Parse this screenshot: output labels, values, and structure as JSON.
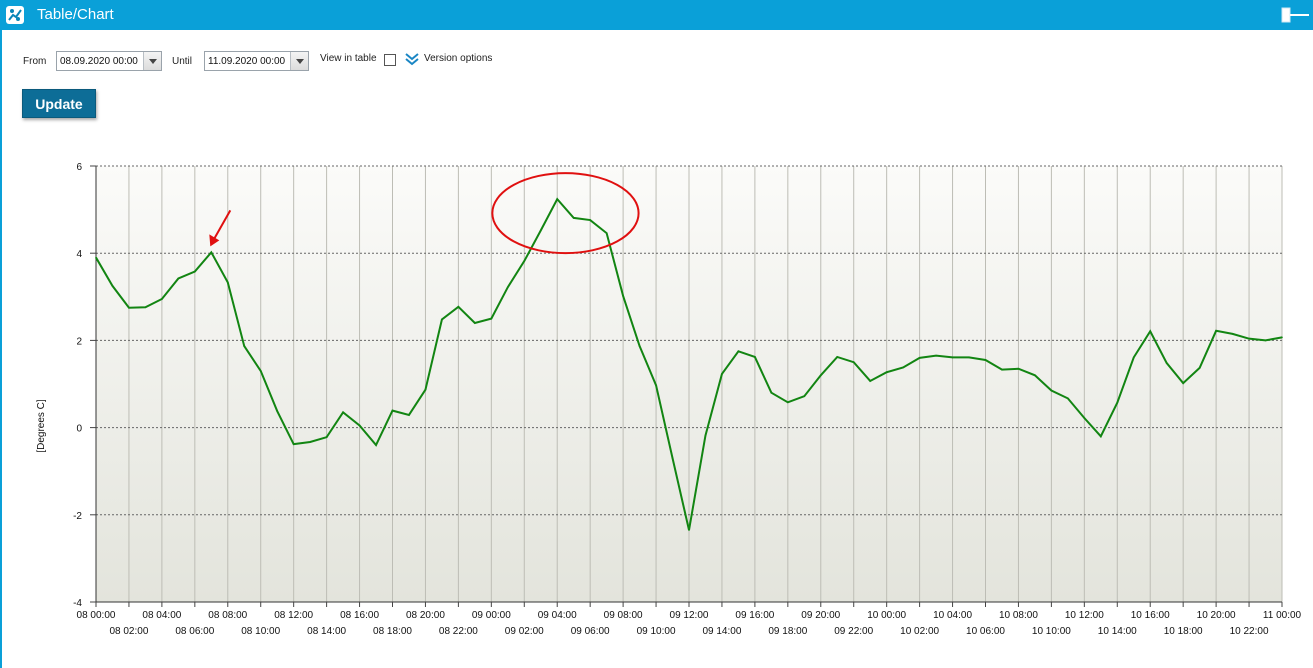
{
  "window": {
    "title": "Table/Chart"
  },
  "toolbar": {
    "from_label": "From",
    "from_value": "08.09.2020 00:00",
    "until_label": "Until",
    "until_value": "11.09.2020 00:00",
    "view_in_table_label": "View in table",
    "view_in_table_checked": false,
    "version_options_label": "Version options",
    "update_label": "Update"
  },
  "colors": {
    "titlebar": "#0aa0d8",
    "series_line": "#128512",
    "annotation": "#e01010",
    "update_button": "#0d6d97"
  },
  "chart_data": {
    "type": "line",
    "ylabel": "[Degrees C]",
    "xlabel": "",
    "ylim": [
      -4,
      6
    ],
    "yticks": [
      -4,
      -2,
      0,
      2,
      4,
      6
    ],
    "grid": true,
    "legend": "none",
    "x_tick_labels": [
      "08 00:00",
      "08 02:00",
      "08 04:00",
      "08 06:00",
      "08 08:00",
      "08 10:00",
      "08 12:00",
      "08 14:00",
      "08 16:00",
      "08 18:00",
      "08 20:00",
      "08 22:00",
      "09 00:00",
      "09 02:00",
      "09 04:00",
      "09 06:00",
      "09 08:00",
      "09 10:00",
      "09 12:00",
      "09 14:00",
      "09 16:00",
      "09 18:00",
      "09 20:00",
      "09 22:00",
      "10 00:00",
      "10 02:00",
      "10 04:00",
      "10 06:00",
      "10 08:00",
      "10 10:00",
      "10 12:00",
      "10 14:00",
      "10 16:00",
      "10 18:00",
      "10 20:00",
      "10 22:00",
      "11 00:00"
    ],
    "x_hours": [
      0,
      1,
      2,
      3,
      4,
      5,
      6,
      7,
      8,
      9,
      10,
      11,
      12,
      13,
      14,
      15,
      16,
      17,
      18,
      19,
      20,
      21,
      22,
      23,
      24,
      25,
      26,
      27,
      28,
      29,
      30,
      31,
      32,
      33,
      34,
      35,
      36,
      37,
      38,
      39,
      40,
      41,
      42,
      43,
      44,
      45,
      46,
      47,
      48,
      49,
      50,
      51,
      52,
      53,
      54,
      55,
      56,
      57,
      58,
      59,
      60,
      61,
      62,
      63,
      64,
      65,
      66,
      67,
      68,
      69,
      70,
      71,
      72
    ],
    "series": [
      {
        "values": [
          3.9,
          3.25,
          2.75,
          2.76,
          2.95,
          3.42,
          3.58,
          4.02,
          3.33,
          1.87,
          1.3,
          0.38,
          -0.38,
          -0.33,
          -0.22,
          0.35,
          0.05,
          -0.4,
          0.39,
          0.29,
          0.87,
          2.48,
          2.77,
          2.4,
          2.5,
          3.22,
          3.82,
          4.52,
          5.24,
          4.81,
          4.76,
          4.46,
          3.02,
          1.87,
          0.97,
          -0.7,
          -2.35,
          -0.18,
          1.23,
          1.75,
          1.62,
          0.8,
          0.58,
          0.72,
          1.2,
          1.62,
          1.5,
          1.07,
          1.27,
          1.38,
          1.6,
          1.65,
          1.61,
          1.61,
          1.55,
          1.33,
          1.35,
          1.2,
          0.85,
          0.67,
          0.22,
          -0.2,
          0.57,
          1.61,
          2.21,
          1.48,
          1.02,
          1.37,
          2.22,
          2.15,
          2.04,
          2.0,
          2.07
        ]
      }
    ],
    "annotations": [
      {
        "type": "arrow",
        "points_to_hour": 7
      },
      {
        "type": "ellipse",
        "around_hours": [
          24,
          33
        ]
      }
    ]
  }
}
